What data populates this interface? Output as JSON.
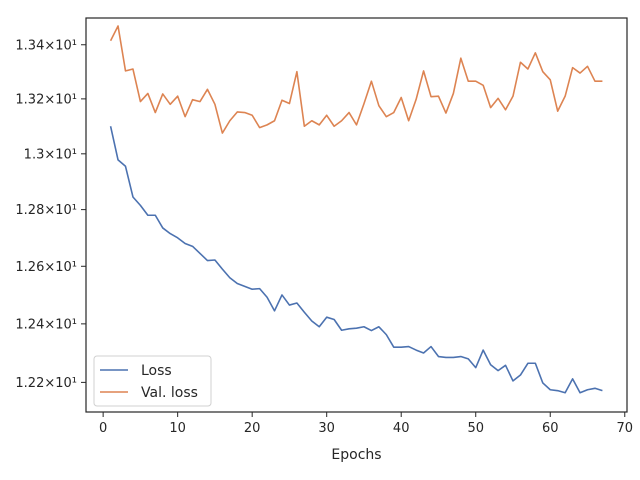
{
  "chart_data": {
    "type": "line",
    "title": "",
    "xlabel": "Epochs",
    "ylabel": "",
    "xlim": [
      -2.3,
      70.3
    ],
    "ylim": [
      12.1,
      13.5
    ],
    "xticks": [
      0,
      10,
      20,
      30,
      40,
      50,
      60,
      70
    ],
    "xtick_labels": [
      "0",
      "10",
      "20",
      "30",
      "40",
      "50",
      "60",
      "70"
    ],
    "yticks": [
      12.2,
      12.4,
      12.6,
      12.8,
      13.0,
      13.2,
      13.4
    ],
    "ytick_labels": [
      "1.22×10¹",
      "1.24×10¹",
      "1.26×10¹",
      "1.28×10¹",
      "1.3×10¹",
      "1.32×10¹",
      "1.34×10¹"
    ],
    "y_scale": "log",
    "grid": false,
    "legend_position": "lower-left",
    "x": [
      1,
      2,
      3,
      4,
      5,
      6,
      7,
      8,
      9,
      10,
      11,
      12,
      13,
      14,
      15,
      16,
      17,
      18,
      19,
      20,
      21,
      22,
      23,
      24,
      25,
      26,
      27,
      28,
      29,
      30,
      31,
      32,
      33,
      34,
      35,
      36,
      37,
      38,
      39,
      40,
      41,
      42,
      43,
      44,
      45,
      46,
      47,
      48,
      49,
      50,
      51,
      52,
      53,
      54,
      55,
      56,
      57,
      58,
      59,
      60,
      61,
      62,
      63,
      64,
      65,
      66,
      67
    ],
    "series": [
      {
        "name": "Loss",
        "color": "#4c72b0",
        "values": [
          13.1,
          12.978,
          12.955,
          12.845,
          12.815,
          12.78,
          12.78,
          12.735,
          12.715,
          12.7,
          12.68,
          12.67,
          12.645,
          12.62,
          12.622,
          12.59,
          12.56,
          12.54,
          12.53,
          12.52,
          12.522,
          12.492,
          12.445,
          12.5,
          12.465,
          12.472,
          12.44,
          12.41,
          12.39,
          12.423,
          12.415,
          12.378,
          12.383,
          12.385,
          12.39,
          12.377,
          12.39,
          12.363,
          12.32,
          12.32,
          12.322,
          12.31,
          12.3,
          12.322,
          12.288,
          12.285,
          12.285,
          12.288,
          12.28,
          12.25,
          12.31,
          12.26,
          12.24,
          12.258,
          12.205,
          12.225,
          12.265,
          12.265,
          12.198,
          12.175,
          12.172,
          12.165,
          12.212,
          12.165,
          12.175,
          12.18,
          12.172
        ]
      },
      {
        "name": "Val. loss",
        "color": "#dd8452",
        "values": [
          13.415,
          13.47,
          13.303,
          13.31,
          13.19,
          13.22,
          13.15,
          13.218,
          13.18,
          13.21,
          13.135,
          13.197,
          13.19,
          13.235,
          13.18,
          13.075,
          13.12,
          13.152,
          13.15,
          13.14,
          13.095,
          13.105,
          13.12,
          13.195,
          13.183,
          13.3,
          13.1,
          13.12,
          13.105,
          13.14,
          13.1,
          13.12,
          13.15,
          13.105,
          13.182,
          13.265,
          13.175,
          13.135,
          13.15,
          13.205,
          13.12,
          13.198,
          13.303,
          13.208,
          13.21,
          13.148,
          13.22,
          13.35,
          13.265,
          13.265,
          13.25,
          13.168,
          13.202,
          13.16,
          13.21,
          13.335,
          13.31,
          13.37,
          13.3,
          13.27,
          13.155,
          13.21,
          13.315,
          13.295,
          13.32,
          13.265,
          13.265
        ]
      }
    ]
  }
}
